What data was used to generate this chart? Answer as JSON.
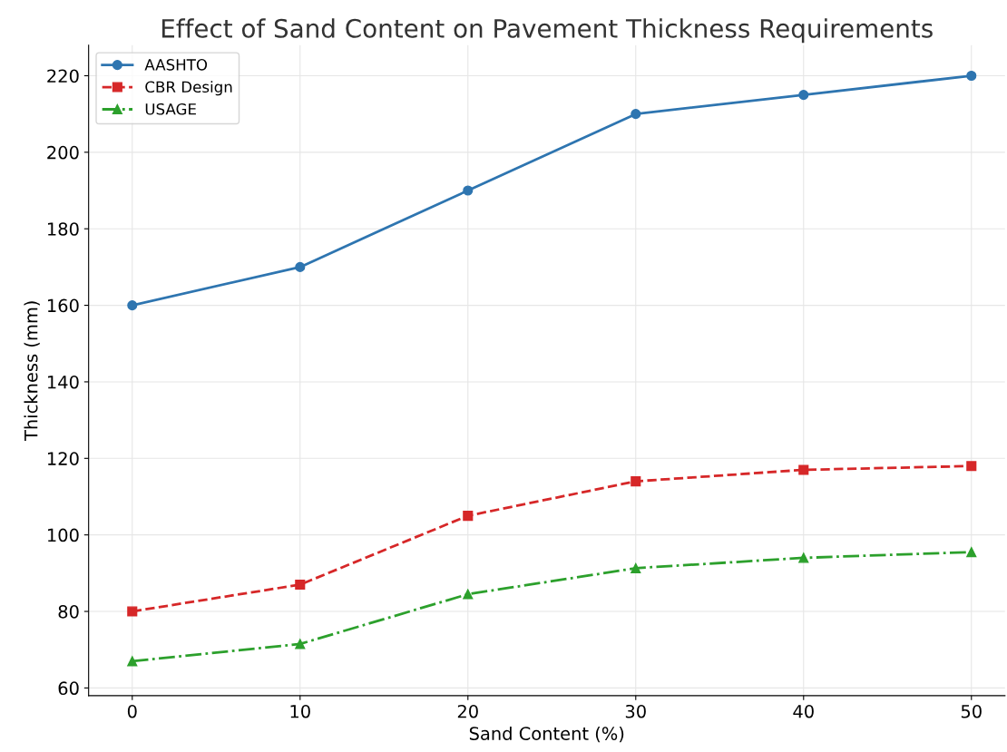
{
  "chart_data": {
    "type": "line",
    "title": "Effect of Sand Content on Pavement Thickness Requirements",
    "xlabel": "Sand Content (%)",
    "ylabel": "Thickness (mm)",
    "x": [
      0,
      10,
      20,
      30,
      40,
      50
    ],
    "series": [
      {
        "name": "AASHTO",
        "color": "#2e75b0",
        "values": [
          160,
          170,
          190,
          210,
          215,
          220
        ],
        "marker": "circle",
        "line_style": "solid"
      },
      {
        "name": "CBR Design",
        "color": "#d62728",
        "values": [
          80,
          87,
          105,
          114,
          117,
          118
        ],
        "marker": "square",
        "line_style": "dashed"
      },
      {
        "name": "USAGE",
        "color": "#2ca02c",
        "values": [
          67,
          71.5,
          84.5,
          91.3,
          94,
          95.5
        ],
        "marker": "triangle",
        "line_style": "dashdot"
      }
    ],
    "xlim": [
      -2.6,
      52
    ],
    "ylim": [
      58,
      228
    ],
    "xticks": [
      0,
      10,
      20,
      30,
      40,
      50
    ],
    "yticks": [
      60,
      80,
      100,
      120,
      140,
      160,
      180,
      200,
      220
    ],
    "grid": true,
    "legend": "top left"
  }
}
